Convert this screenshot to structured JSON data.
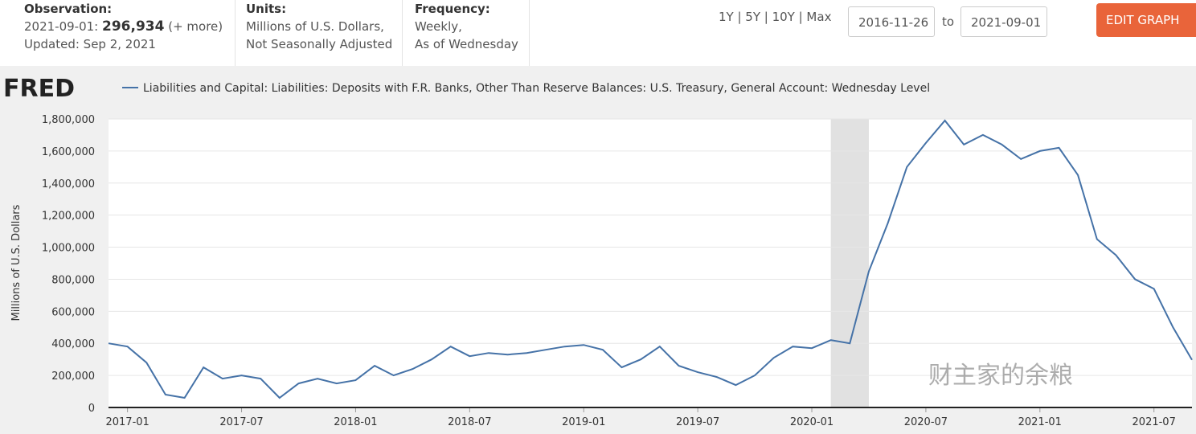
{
  "header": {
    "observation_label": "Observation:",
    "observation_date": "2021-09-01:",
    "observation_value": "296,934",
    "more": "(+ more)",
    "updated": "Updated: Sep 2, 2021",
    "units_label": "Units:",
    "units": [
      "Millions of U.S. Dollars,",
      "Not Seasonally Adjusted"
    ],
    "frequency_label": "Frequency:",
    "frequency": [
      "Weekly,",
      "As of Wednesday"
    ],
    "ranges": "1Y | 5Y | 10Y | Max",
    "date_from": "2016-11-26",
    "to": "to",
    "date_to": "2021-09-01",
    "edit": "EDIT GRAPH"
  },
  "logo": "FRED",
  "watermark": "财主家的余粮",
  "chart_data": {
    "type": "line",
    "ylabel": "Millions of U.S. Dollars",
    "x": [
      "2016-12",
      "2017-01",
      "2017-02",
      "2017-03",
      "2017-04",
      "2017-05",
      "2017-06",
      "2017-07",
      "2017-08",
      "2017-09",
      "2017-10",
      "2017-11",
      "2017-12",
      "2018-01",
      "2018-02",
      "2018-03",
      "2018-04",
      "2018-05",
      "2018-06",
      "2018-07",
      "2018-08",
      "2018-09",
      "2018-10",
      "2018-11",
      "2018-12",
      "2019-01",
      "2019-02",
      "2019-03",
      "2019-04",
      "2019-05",
      "2019-06",
      "2019-07",
      "2019-08",
      "2019-09",
      "2019-10",
      "2019-11",
      "2019-12",
      "2020-01",
      "2020-02",
      "2020-03",
      "2020-04",
      "2020-05",
      "2020-06",
      "2020-07",
      "2020-08",
      "2020-09",
      "2020-10",
      "2020-11",
      "2020-12",
      "2021-01",
      "2021-02",
      "2021-03",
      "2021-04",
      "2021-05",
      "2021-06",
      "2021-07",
      "2021-08",
      "2021-09"
    ],
    "series": [
      {
        "name": "Liabilities and Capital: Liabilities: Deposits with F.R. Banks, Other Than Reserve Balances: U.S. Treasury, General Account: Wednesday Level",
        "color": "#4572a7",
        "values": [
          400000,
          380000,
          280000,
          80000,
          60000,
          250000,
          180000,
          200000,
          180000,
          60000,
          150000,
          180000,
          150000,
          170000,
          260000,
          200000,
          240000,
          300000,
          380000,
          320000,
          340000,
          330000,
          340000,
          360000,
          380000,
          390000,
          360000,
          250000,
          300000,
          380000,
          260000,
          220000,
          190000,
          140000,
          200000,
          310000,
          380000,
          370000,
          420000,
          400000,
          850000,
          1150000,
          1500000,
          1650000,
          1790000,
          1640000,
          1700000,
          1640000,
          1550000,
          1600000,
          1620000,
          1450000,
          1050000,
          950000,
          800000,
          740000,
          500000,
          296934
        ]
      }
    ],
    "xlim": [
      "2016-12",
      "2021-09"
    ],
    "xticks": [
      "2017-01",
      "2017-07",
      "2018-01",
      "2018-07",
      "2019-01",
      "2019-07",
      "2020-01",
      "2020-07",
      "2021-01",
      "2021-07"
    ],
    "ylim": [
      0,
      1800000
    ],
    "yticks": [
      0,
      {
        "value": 200000,
        "label": "200,000"
      },
      {
        "value": 400000,
        "label": "400,000"
      },
      {
        "value": 600000,
        "label": "600,000"
      },
      {
        "value": 800000,
        "label": "800,000"
      },
      {
        "value": 1000000,
        "label": "1,000,000"
      },
      {
        "value": 1200000,
        "label": "1,200,000"
      },
      {
        "value": 1400000,
        "label": "1,400,000"
      },
      {
        "value": 1600000,
        "label": "1,600,000"
      },
      {
        "value": 1800000,
        "label": "1,800,000"
      }
    ],
    "recession": [
      "2020-02",
      "2020-04"
    ],
    "grid": true
  }
}
